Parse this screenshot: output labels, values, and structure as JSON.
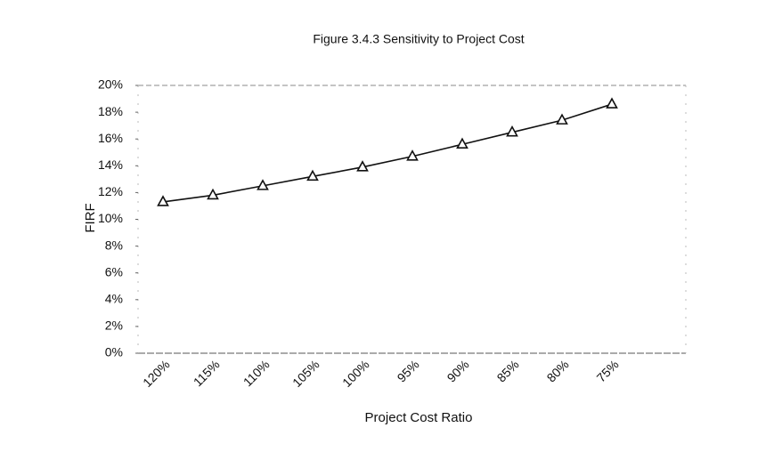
{
  "chart_data": {
    "type": "line",
    "title": "Figure  3.4.3  Sensitivity to Project Cost",
    "x_label": "Project Cost Ratio",
    "y_label": "FIRF",
    "categories": [
      "120%",
      "115%",
      "110%",
      "105%",
      "100%",
      "95%",
      "90%",
      "85%",
      "80%",
      "75%"
    ],
    "values": [
      11.3,
      11.8,
      12.5,
      13.2,
      13.9,
      14.7,
      15.6,
      16.5,
      17.4,
      18.6
    ],
    "color": "#111111",
    "ylim": [
      0,
      20
    ],
    "yticks": [
      {
        "value": 0,
        "label": "0%"
      },
      {
        "value": 2,
        "label": "2%"
      },
      {
        "value": 4,
        "label": "4%"
      },
      {
        "value": 6,
        "label": "6%"
      },
      {
        "value": 8,
        "label": "8%"
      },
      {
        "value": 10,
        "label": "10%"
      },
      {
        "value": 12,
        "label": "12%"
      },
      {
        "value": 14,
        "label": "14%"
      },
      {
        "value": 16,
        "label": "16%"
      },
      {
        "value": 18,
        "label": "18%"
      },
      {
        "value": 20,
        "label": "20%"
      }
    ],
    "grid": false
  }
}
